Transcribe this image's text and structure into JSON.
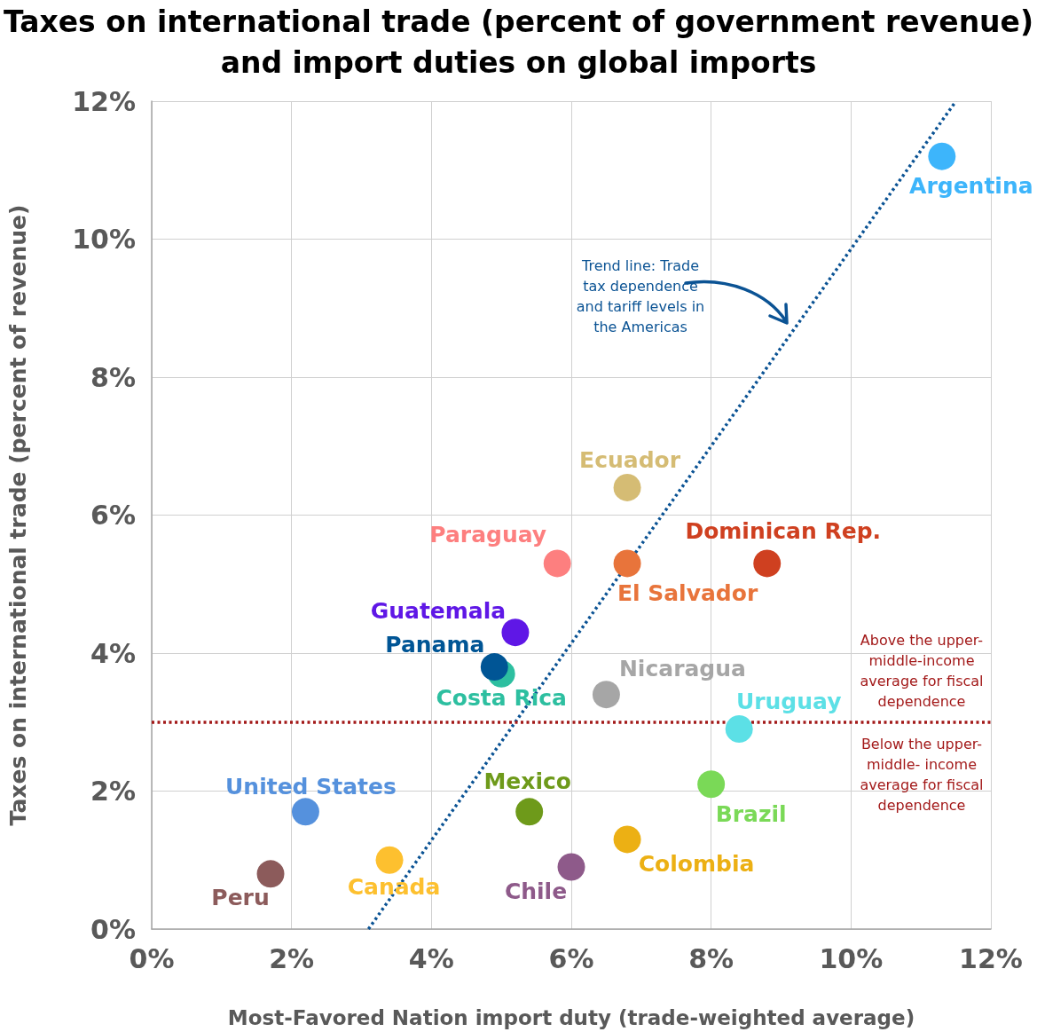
{
  "chart_data": {
    "type": "scatter",
    "title": "Taxes on international trade (percent of government revenue) and import duties on global imports",
    "xlabel": "Most-Favored Nation import duty (trade-weighted average)",
    "ylabel": "Taxes on international trade (percent of revenue)",
    "xlim": [
      0,
      12
    ],
    "ylim": [
      0,
      12
    ],
    "xticks": [
      {
        "value": 0,
        "label": "0%"
      },
      {
        "value": 2,
        "label": "2%"
      },
      {
        "value": 4,
        "label": "4%"
      },
      {
        "value": 6,
        "label": "6%"
      },
      {
        "value": 8,
        "label": "8%"
      },
      {
        "value": 10,
        "label": "10%"
      },
      {
        "value": 12,
        "label": "12%"
      }
    ],
    "yticks": [
      {
        "value": 0,
        "label": "0%"
      },
      {
        "value": 2,
        "label": "2%"
      },
      {
        "value": 4,
        "label": "4%"
      },
      {
        "value": 6,
        "label": "6%"
      },
      {
        "value": 8,
        "label": "8%"
      },
      {
        "value": 10,
        "label": "10%"
      },
      {
        "value": 12,
        "label": "12%"
      }
    ],
    "grid": true,
    "marker": "circle",
    "series": [
      {
        "name": "Argentina",
        "color": "#3db5fb",
        "x": [
          11.3
        ],
        "values": [
          11.2
        ]
      },
      {
        "name": "Ecuador",
        "color": "#d5bc74",
        "x": [
          6.8
        ],
        "values": [
          6.4
        ]
      },
      {
        "name": "Paraguay",
        "color": "#fd7f7f",
        "x": [
          5.8
        ],
        "values": [
          5.3
        ]
      },
      {
        "name": "El Salvador",
        "color": "#e8743b",
        "x": [
          6.8
        ],
        "values": [
          5.3
        ]
      },
      {
        "name": "Dominican Rep.",
        "color": "#cf4020",
        "x": [
          8.8
        ],
        "values": [
          5.3
        ]
      },
      {
        "name": "Guatemala",
        "color": "#5f17e6",
        "x": [
          5.2
        ],
        "values": [
          4.3
        ]
      },
      {
        "name": "Panama",
        "color": "#005595",
        "x": [
          4.9
        ],
        "values": [
          3.8
        ]
      },
      {
        "name": "Costa Rica",
        "color": "#2dbfa0",
        "x": [
          5.0
        ],
        "values": [
          3.7
        ]
      },
      {
        "name": "Nicaragua",
        "color": "#a6a6a6",
        "x": [
          6.5
        ],
        "values": [
          3.4
        ]
      },
      {
        "name": "Uruguay",
        "color": "#5ce0e6",
        "x": [
          8.4
        ],
        "values": [
          2.9
        ]
      },
      {
        "name": "Brazil",
        "color": "#7ad957",
        "x": [
          8.0
        ],
        "values": [
          2.1
        ]
      },
      {
        "name": "United States",
        "color": "#5591dd",
        "x": [
          2.2
        ],
        "values": [
          1.7
        ]
      },
      {
        "name": "Mexico",
        "color": "#6e9a1a",
        "x": [
          5.4
        ],
        "values": [
          1.7
        ]
      },
      {
        "name": "Colombia",
        "color": "#ecb014",
        "x": [
          6.8
        ],
        "values": [
          1.3
        ]
      },
      {
        "name": "Canada",
        "color": "#fdc02f",
        "x": [
          3.4
        ],
        "values": [
          1.0
        ]
      },
      {
        "name": "Chile",
        "color": "#8e5a8a",
        "x": [
          6.0
        ],
        "values": [
          0.9
        ]
      },
      {
        "name": "Peru",
        "color": "#8c5b5b",
        "x": [
          1.7
        ],
        "values": [
          0.8
        ]
      },
      {
        "type": "line",
        "color": "#0b5394",
        "line_style": "dotted",
        "marker": "none",
        "x": [
          3.1,
          11.5
        ],
        "values": [
          0,
          12
        ]
      }
    ],
    "ref_lines": [
      {
        "axis": "y",
        "value": 3,
        "color": "#a31a1a",
        "line_style": "dotted"
      }
    ],
    "annotations": [
      "Trend line: Trade tax dependence and tariff levels in the Americas",
      "Above the upper-middle-income average for fiscal dependence",
      "Below the upper-middle- income average for fiscal dependence"
    ]
  }
}
